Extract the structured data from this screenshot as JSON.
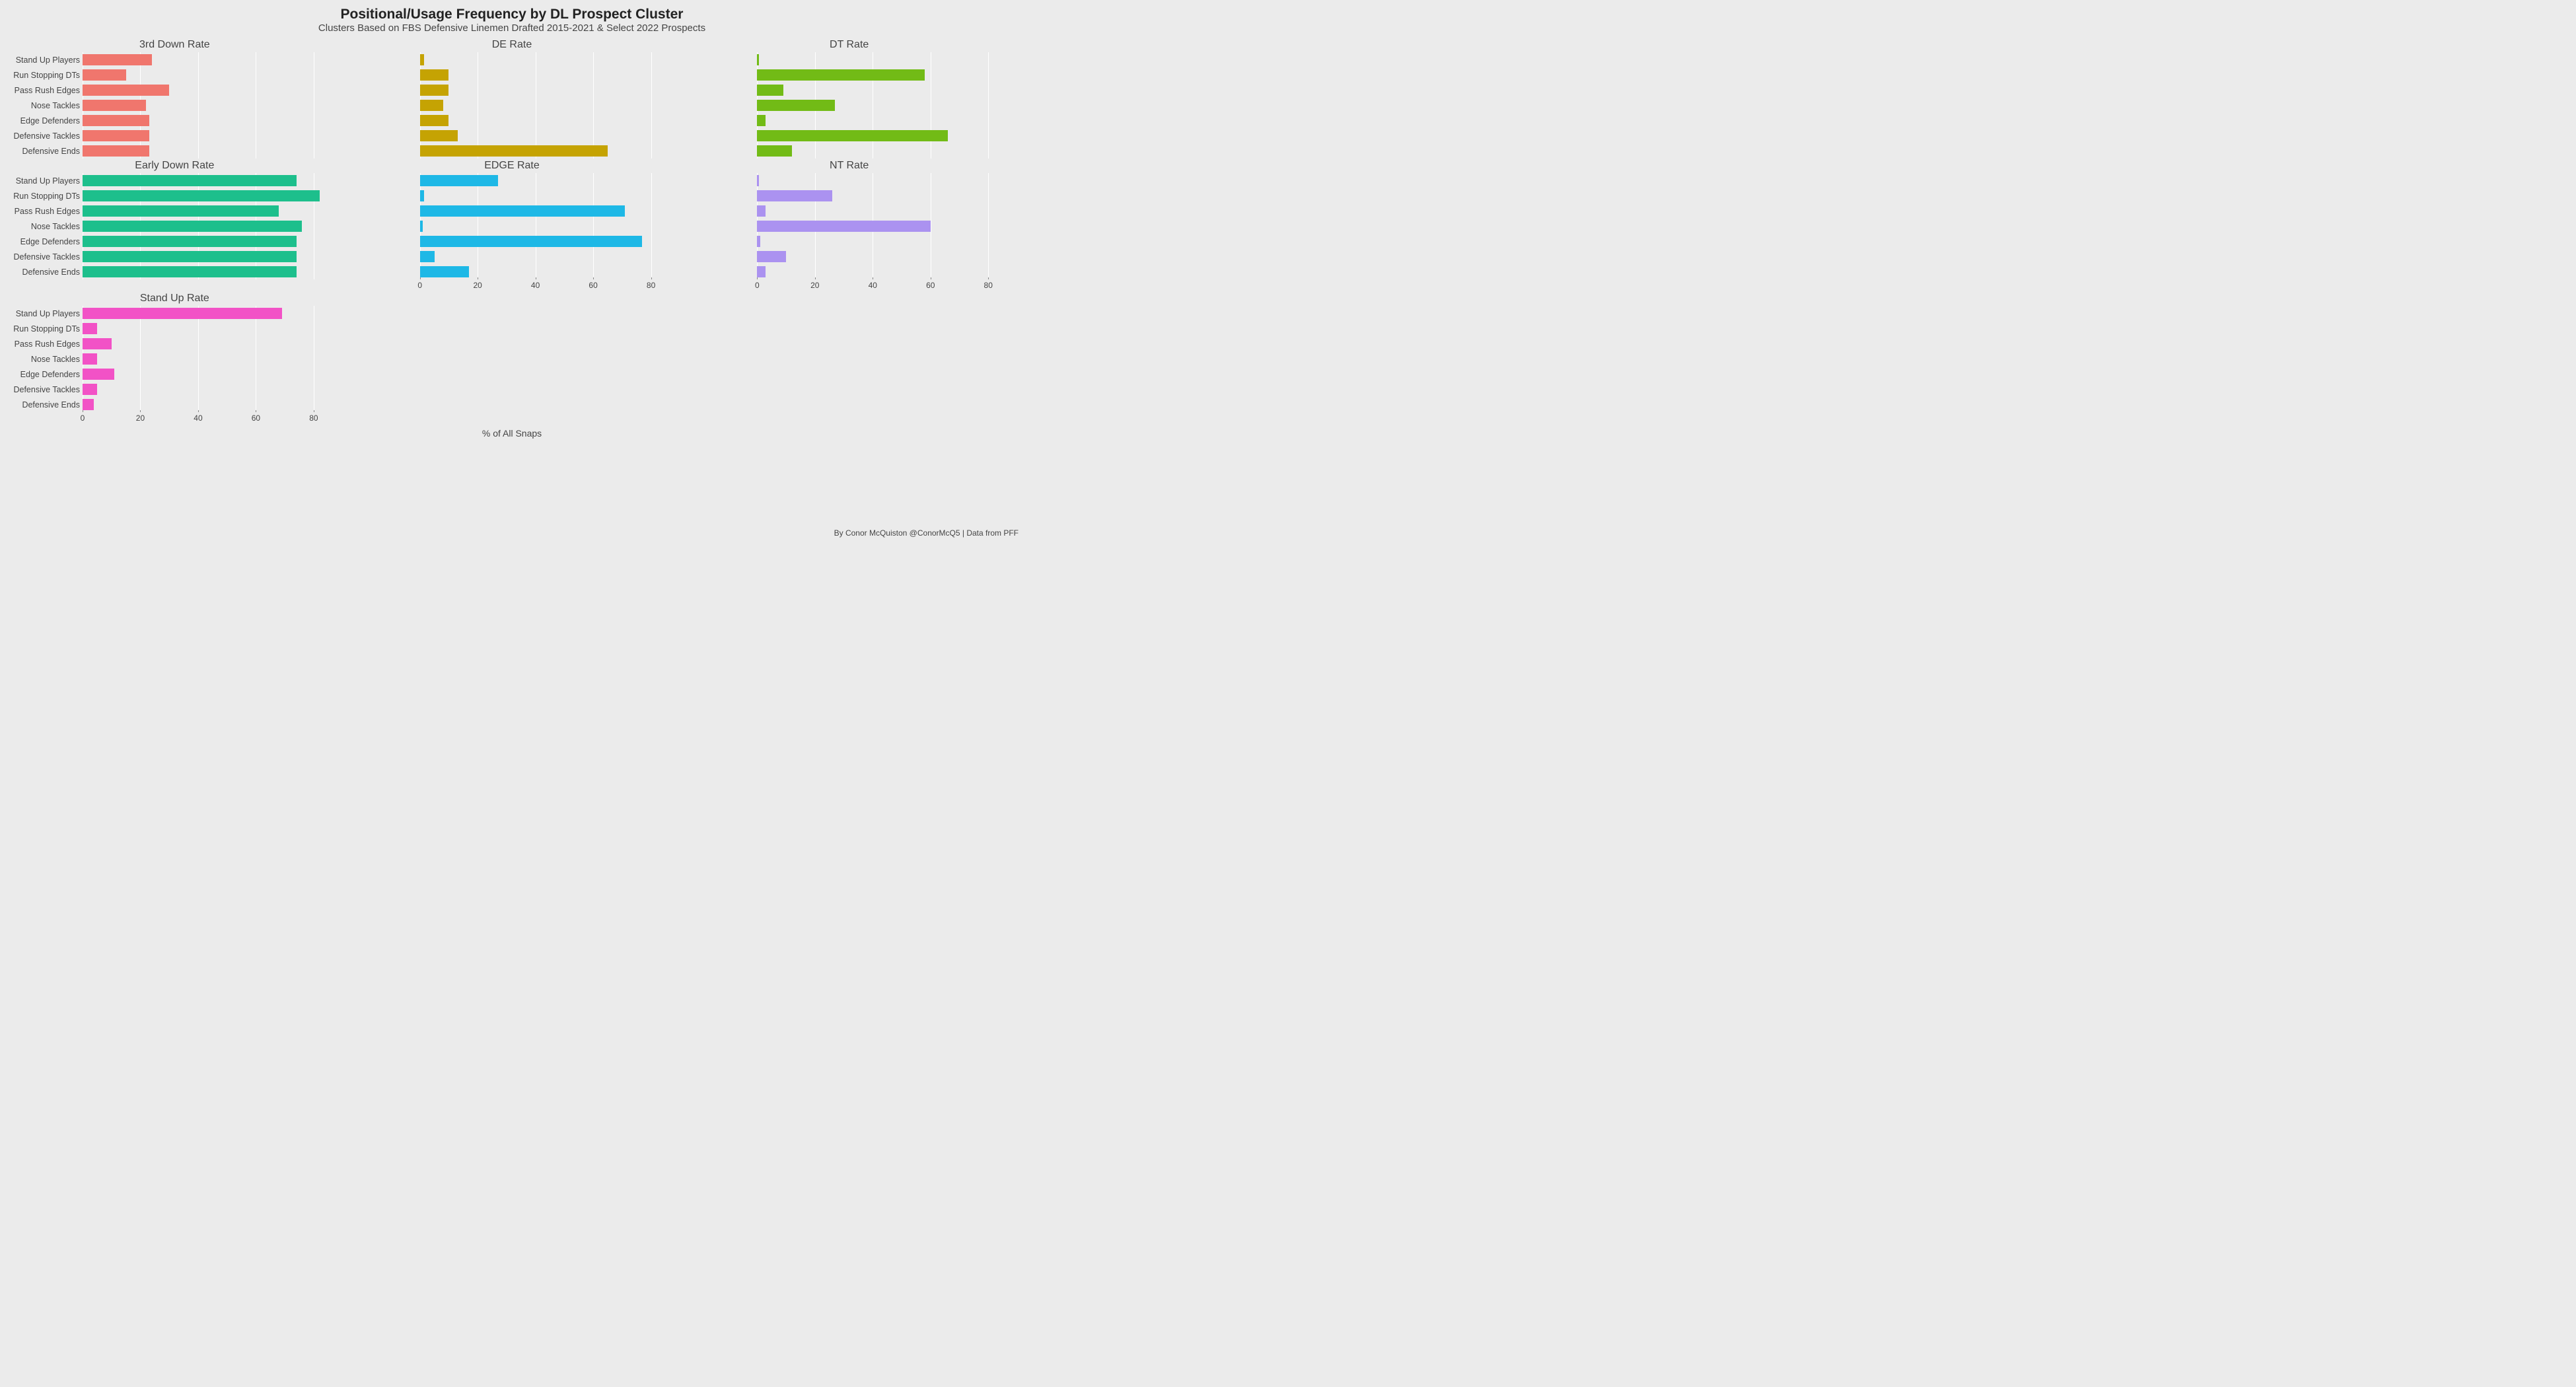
{
  "title": "Positional/Usage Frequency by DL Prospect Cluster",
  "subtitle": "Clusters Based on FBS Defensive Linemen Drafted 2015-2021 & Select 2022 Prospects",
  "x_axis_label": "% of All Snaps",
  "credit": "By Conor McQuiston @ConorMcQ5 | Data from PFF",
  "background_color": "#ebebeb",
  "gridline_color": "#ffffff",
  "text_color": "#444444",
  "title_color": "#222222",
  "title_fontsize": 21,
  "subtitle_fontsize": 15,
  "panel_title_fontsize": 16,
  "y_label_fontsize": 12.5,
  "x_tick_fontsize": 12,
  "x_label_fontsize": 14,
  "credit_fontsize": 12,
  "categories": [
    "Stand Up Players",
    "Run Stopping DTs",
    "Pass Rush Edges",
    "Nose Tackles",
    "Edge Defenders",
    "Defensive Tackles",
    "Defensive Ends"
  ],
  "xlim": [
    0,
    90
  ],
  "xticks": [
    0,
    20,
    40,
    60,
    80
  ],
  "bar_row_height": 23,
  "y_label_width": 115,
  "panels": [
    {
      "title": "3rd Down Rate",
      "color": "#f0766d",
      "values": [
        24,
        15,
        30,
        22,
        23,
        23,
        23
      ],
      "show_x_axis": false,
      "show_y_labels": true
    },
    {
      "title": "DE Rate",
      "color": "#c5a303",
      "values": [
        1.5,
        10,
        10,
        8,
        10,
        13,
        65
      ],
      "show_x_axis": false,
      "show_y_labels": false
    },
    {
      "title": "DT Rate",
      "color": "#72bb16",
      "values": [
        0.5,
        58,
        9,
        27,
        3,
        66,
        12
      ],
      "show_x_axis": false,
      "show_y_labels": false
    },
    {
      "title": "Early Down Rate",
      "color": "#1dbf8c",
      "values": [
        74,
        82,
        68,
        76,
        74,
        74,
        74
      ],
      "show_x_axis": false,
      "show_y_labels": true
    },
    {
      "title": "EDGE Rate",
      "color": "#1eb8e6",
      "values": [
        27,
        1.5,
        71,
        1,
        77,
        5,
        17
      ],
      "show_x_axis": true,
      "show_y_labels": false
    },
    {
      "title": "NT Rate",
      "color": "#ab92f0",
      "values": [
        0.5,
        26,
        3,
        60,
        1,
        10,
        3
      ],
      "show_x_axis": true,
      "show_y_labels": false
    },
    {
      "title": "Stand Up Rate",
      "color": "#f252c6",
      "values": [
        69,
        5,
        10,
        5,
        11,
        5,
        4
      ],
      "show_x_axis": true,
      "show_y_labels": true
    }
  ]
}
